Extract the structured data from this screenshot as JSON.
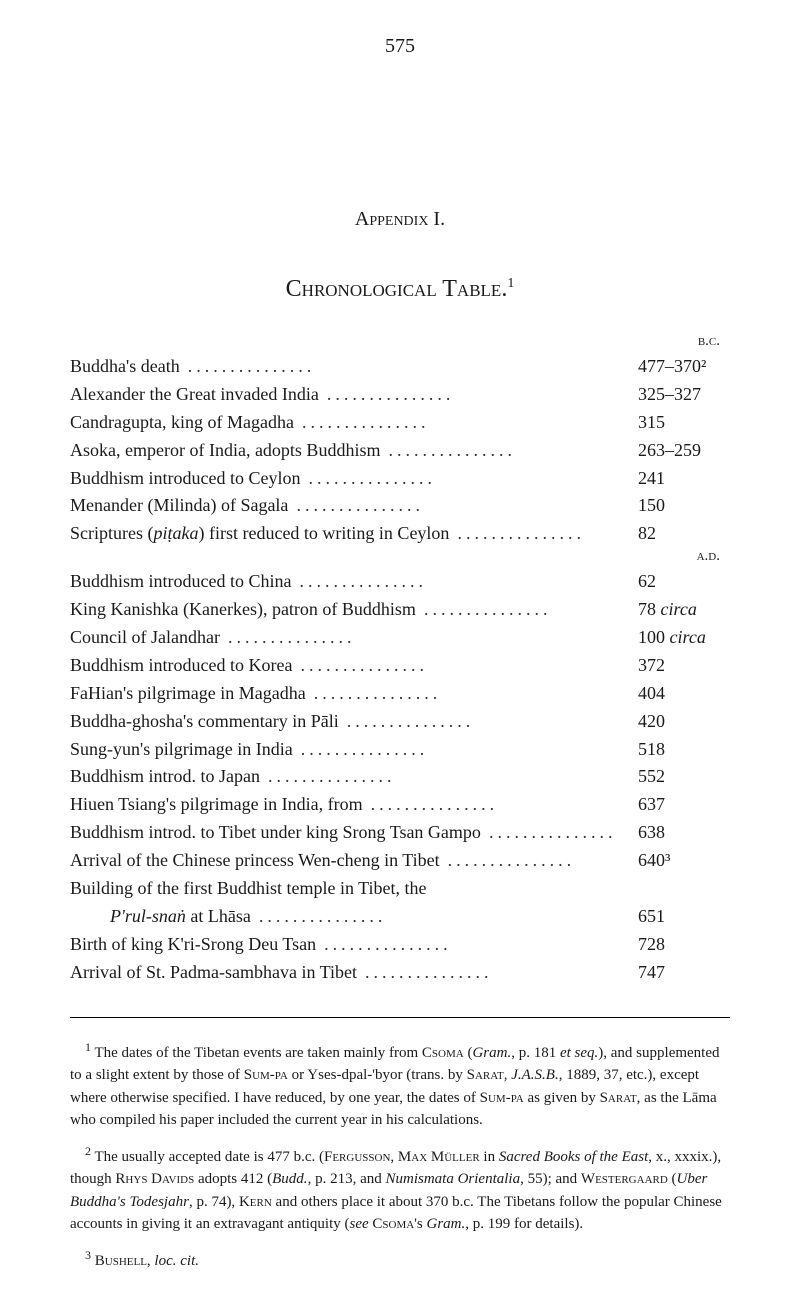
{
  "page_number": "575",
  "appendix_title": "Appendix I.",
  "chapter_title": "Chronological Table.",
  "chapter_superscript": "1",
  "era_bc": "b.c.",
  "era_ad": "a.d.",
  "entries_bc": [
    {
      "label": "Buddha's death",
      "value": "477–370²"
    },
    {
      "label": "Alexander the Great invaded India",
      "value": "325–327"
    },
    {
      "label": "Candragupta, king of Magadha",
      "value": "315"
    },
    {
      "label": "Asoka, emperor of India, adopts Buddhism",
      "value": "263–259"
    },
    {
      "label": "Buddhism introduced to Ceylon",
      "value": "241"
    },
    {
      "label": "Menander (Milinda) of Sagala",
      "value": "150"
    },
    {
      "label": "Scriptures (piṭaka) first reduced to writing in Ceylon",
      "value": "82"
    }
  ],
  "entries_ad": [
    {
      "label": "Buddhism introduced to China",
      "value": "62"
    },
    {
      "label": "King Kanishka (Kanerkes), patron of Buddhism",
      "value": "78 circa"
    },
    {
      "label": "Council of Jalandhar",
      "value": "100 circa"
    },
    {
      "label": "Buddhism introduced to Korea",
      "value": "372"
    },
    {
      "label": "FaHian's pilgrimage in Magadha",
      "value": "404"
    },
    {
      "label": "Buddha-ghosha's commentary in Pāli",
      "value": "420"
    },
    {
      "label": "Sung-yun's pilgrimage in India",
      "value": "518"
    },
    {
      "label": "Buddhism introd. to Japan",
      "value": "552"
    },
    {
      "label": "Hiuen Tsiang's pilgrimage in India, from",
      "value": "637"
    },
    {
      "label": "Buddhism introd. to Tibet under king Srong Tsan Gampo",
      "value": "638"
    },
    {
      "label": "Arrival of the Chinese princess Wen-cheng in Tibet",
      "value": "640³"
    },
    {
      "label": "Building of the first Buddhist temple in Tibet, the",
      "value": ""
    },
    {
      "label": "P'rul-snaṅ at Lhāsa",
      "value": "651",
      "indent": true
    },
    {
      "label": "Birth of king K'ri-Srong Deu Tsan",
      "value": "728"
    },
    {
      "label": "Arrival of St. Padma-sambhava in Tibet",
      "value": "747"
    }
  ],
  "footnotes": [
    {
      "mark": "1",
      "text": "The dates of the Tibetan events are taken mainly from Csoma (Gram., p. 181 et seq.), and supplemented to a slight extent by those of Sum-pa or Yses-dpal-'byor (trans. by Sarat, J.A.S.B., 1889, 37, etc.), except where otherwise specified. I have reduced, by one year, the dates of Sum-pa as given by Sarat, as the Lāma who compiled his paper included the current year in his calculations."
    },
    {
      "mark": "2",
      "text": "The usually accepted date is 477 b.c. (Fergusson, Max Müller in Sacred Books of the East, x., xxxix.), though Rhys Davids adopts 412 (Budd., p. 213, and Numismata Orientalia, 55); and Westergaard (Uber Buddha's Todesjahr, p. 74), Kern and others place it about 370 b.c. The Tibetans follow the popular Chinese accounts in giving it an extravagant antiquity (see Csoma's Gram., p. 199 for details)."
    },
    {
      "mark": "3",
      "text": "Bushell, loc. cit."
    }
  ]
}
